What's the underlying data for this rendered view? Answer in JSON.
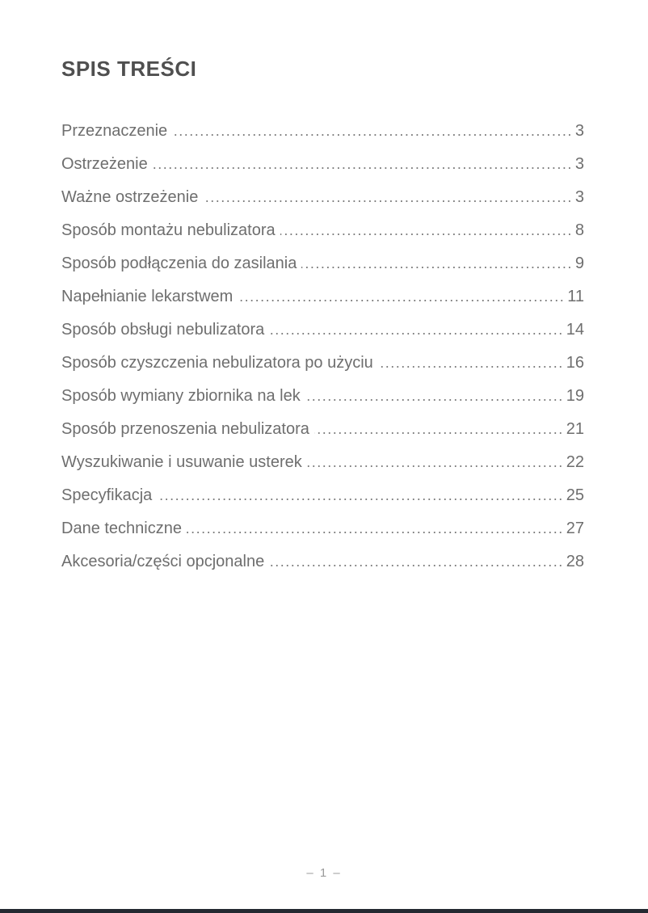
{
  "page": {
    "title": "SPIS TREŚCI",
    "footer_page_label": "– 1 –"
  },
  "toc": {
    "entries": [
      {
        "label": "Przeznaczenie",
        "page": "3"
      },
      {
        "label": "Ostrzeżenie",
        "page": "3"
      },
      {
        "label": "Ważne ostrzeżenie",
        "page": "3"
      },
      {
        "label": "Sposób montażu nebulizatora",
        "page": "8"
      },
      {
        "label": "Sposób podłączenia do zasilania",
        "page": "9"
      },
      {
        "label": "Napełnianie lekarstwem",
        "page": "11"
      },
      {
        "label": "Sposób obsługi nebulizatora",
        "page": "14"
      },
      {
        "label": "Sposób czyszczenia nebulizatora po użyciu",
        "page": "16"
      },
      {
        "label": "Sposób wymiany zbiornika na lek",
        "page": "19"
      },
      {
        "label": "Sposób przenoszenia nebulizatora",
        "page": "21"
      },
      {
        "label": "Wyszukiwanie i usuwanie usterek",
        "page": "22"
      },
      {
        "label": "Specyfikacja",
        "page": "25"
      },
      {
        "label": "Dane techniczne",
        "page": "27"
      },
      {
        "label": "Akcesoria/części opcjonalne",
        "page": "28"
      }
    ]
  },
  "colors": {
    "title_text": "#4f4f4f",
    "body_text": "#6e6e6e",
    "dot_leader": "#7d7d7d",
    "footer_text": "#9b9b9b",
    "bottom_bar": "#242931",
    "background": "#ffffff"
  }
}
